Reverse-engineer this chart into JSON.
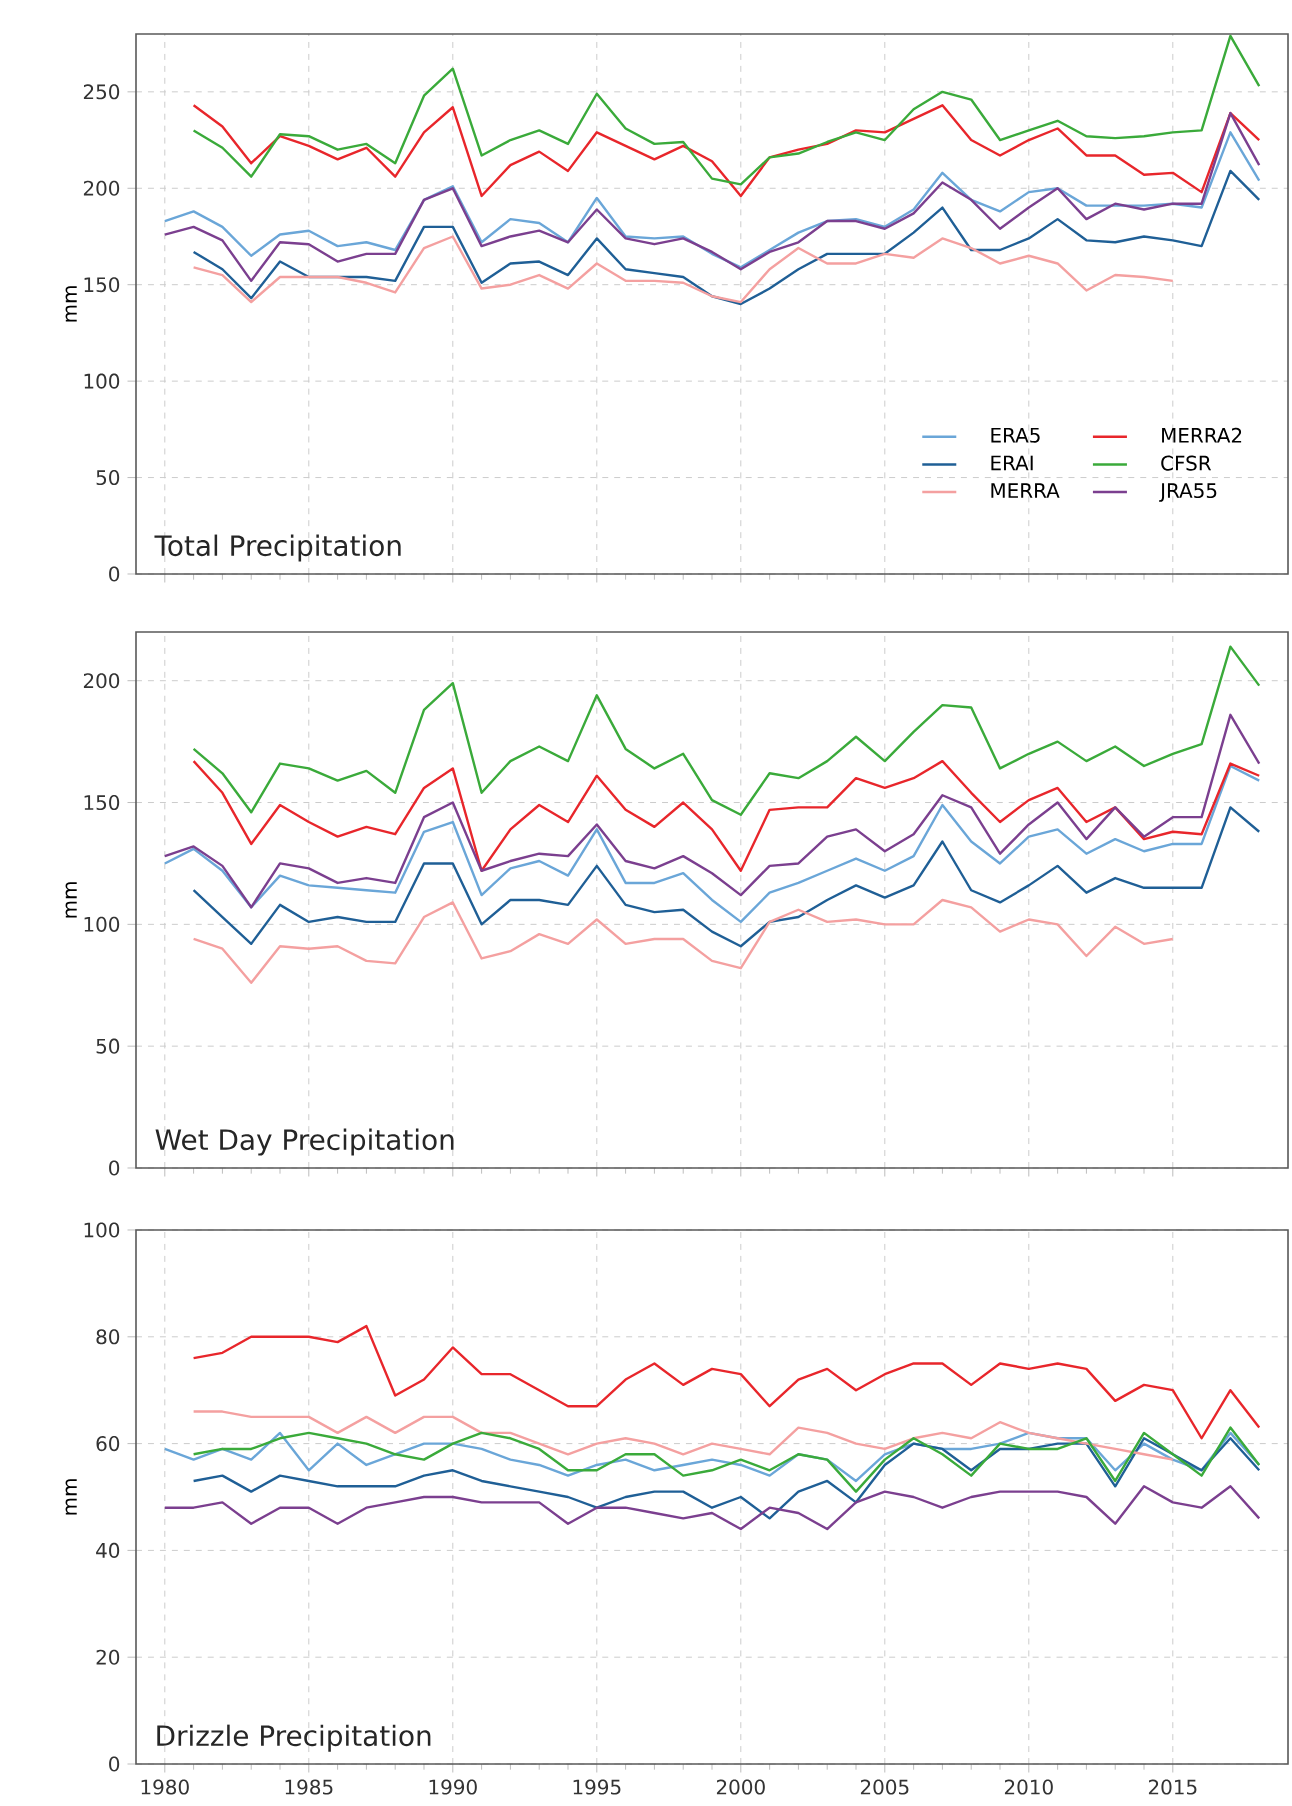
{
  "chart_data": [
    {
      "type": "line",
      "ylabel": "mm",
      "annotations": [
        "Total Precipitation"
      ],
      "x": [
        1980,
        1981,
        1982,
        1983,
        1984,
        1985,
        1986,
        1987,
        1988,
        1989,
        1990,
        1991,
        1992,
        1993,
        1994,
        1995,
        1996,
        1997,
        1998,
        1999,
        2000,
        2001,
        2002,
        2003,
        2004,
        2005,
        2006,
        2007,
        2008,
        2009,
        2010,
        2011,
        2012,
        2013,
        2014,
        2015,
        2016,
        2017,
        2018
      ],
      "xlim": [
        1979,
        2019
      ],
      "xticks": [
        1980,
        1985,
        1990,
        1995,
        2000,
        2005,
        2010,
        2015
      ],
      "ylim": [
        0,
        280
      ],
      "yticks": [
        0,
        50,
        100,
        150,
        200,
        250
      ],
      "grid": true,
      "legend": "bottom right",
      "tick_labels": "y",
      "line_style": "solid",
      "series": [
        {
          "name": "ERA5",
          "color": "#6aa6d8",
          "values": [
            183,
            188,
            180,
            165,
            176,
            178,
            170,
            172,
            168,
            194,
            201,
            172,
            184,
            182,
            172,
            195,
            175,
            174,
            175,
            166,
            159,
            168,
            177,
            183,
            184,
            180,
            189,
            208,
            194,
            188,
            198,
            200,
            191,
            191,
            191,
            192,
            190,
            229,
            204
          ]
        },
        {
          "name": "ERAI",
          "color": "#1f5f96",
          "values": [
            null,
            167,
            158,
            143,
            162,
            154,
            154,
            154,
            152,
            180,
            180,
            151,
            161,
            162,
            155,
            174,
            158,
            156,
            154,
            144,
            140,
            148,
            158,
            166,
            166,
            166,
            177,
            190,
            168,
            168,
            174,
            184,
            173,
            172,
            175,
            173,
            170,
            209,
            194
          ]
        },
        {
          "name": "MERRA",
          "color": "#f4a0a0",
          "values": [
            null,
            159,
            155,
            141,
            154,
            154,
            154,
            151,
            146,
            169,
            175,
            148,
            150,
            155,
            148,
            161,
            152,
            152,
            151,
            144,
            141,
            158,
            169,
            161,
            161,
            166,
            164,
            174,
            169,
            161,
            165,
            161,
            147,
            155,
            154,
            152,
            null,
            null,
            null
          ]
        },
        {
          "name": "MERRA2",
          "color": "#e8262b",
          "values": [
            null,
            243,
            232,
            213,
            227,
            222,
            215,
            221,
            206,
            229,
            242,
            196,
            212,
            219,
            209,
            229,
            222,
            215,
            222,
            214,
            196,
            216,
            220,
            223,
            230,
            229,
            236,
            243,
            225,
            217,
            225,
            231,
            217,
            217,
            207,
            208,
            198,
            239,
            225
          ]
        },
        {
          "name": "CFSR",
          "color": "#3aaa3a",
          "values": [
            null,
            230,
            221,
            206,
            228,
            227,
            220,
            223,
            213,
            248,
            262,
            217,
            225,
            230,
            223,
            249,
            231,
            223,
            224,
            205,
            202,
            216,
            218,
            224,
            229,
            225,
            241,
            250,
            246,
            225,
            230,
            235,
            227,
            226,
            227,
            229,
            230,
            279,
            253
          ]
        },
        {
          "name": "JRA55",
          "color": "#7b3f8f",
          "values": [
            176,
            180,
            173,
            152,
            172,
            171,
            162,
            166,
            166,
            194,
            200,
            170,
            175,
            178,
            172,
            189,
            174,
            171,
            174,
            167,
            158,
            167,
            172,
            183,
            183,
            179,
            187,
            203,
            194,
            179,
            190,
            200,
            184,
            192,
            189,
            192,
            192,
            239,
            212
          ]
        }
      ]
    },
    {
      "type": "line",
      "ylabel": "mm",
      "annotations": [
        "Wet Day Precipitation"
      ],
      "x": [
        1980,
        1981,
        1982,
        1983,
        1984,
        1985,
        1986,
        1987,
        1988,
        1989,
        1990,
        1991,
        1992,
        1993,
        1994,
        1995,
        1996,
        1997,
        1998,
        1999,
        2000,
        2001,
        2002,
        2003,
        2004,
        2005,
        2006,
        2007,
        2008,
        2009,
        2010,
        2011,
        2012,
        2013,
        2014,
        2015,
        2016,
        2017,
        2018
      ],
      "xlim": [
        1979,
        2019
      ],
      "xticks": [
        1980,
        1985,
        1990,
        1995,
        2000,
        2005,
        2010,
        2015
      ],
      "ylim": [
        0,
        220
      ],
      "yticks": [
        0,
        50,
        100,
        150,
        200
      ],
      "grid": true,
      "tick_labels": "y",
      "line_style": "solid",
      "series": [
        {
          "color": "#6aa6d8",
          "values": [
            125,
            131,
            122,
            107,
            120,
            116,
            115,
            114,
            113,
            138,
            142,
            112,
            123,
            126,
            120,
            139,
            117,
            117,
            121,
            110,
            101,
            113,
            117,
            122,
            127,
            122,
            128,
            149,
            134,
            125,
            136,
            139,
            129,
            135,
            130,
            133,
            133,
            165,
            159
          ]
        },
        {
          "color": "#1f5f96",
          "values": [
            null,
            114,
            103,
            92,
            108,
            101,
            103,
            101,
            101,
            125,
            125,
            100,
            110,
            110,
            108,
            124,
            108,
            105,
            106,
            97,
            91,
            101,
            103,
            110,
            116,
            111,
            116,
            134,
            114,
            109,
            116,
            124,
            113,
            119,
            115,
            115,
            115,
            148,
            138
          ]
        },
        {
          "color": "#f4a0a0",
          "values": [
            null,
            94,
            90,
            76,
            91,
            90,
            91,
            85,
            84,
            103,
            109,
            86,
            89,
            96,
            92,
            102,
            92,
            94,
            94,
            85,
            82,
            101,
            106,
            101,
            102,
            100,
            100,
            110,
            107,
            97,
            102,
            100,
            87,
            99,
            92,
            94,
            null,
            null,
            null
          ]
        },
        {
          "color": "#e8262b",
          "values": [
            null,
            167,
            154,
            133,
            149,
            142,
            136,
            140,
            137,
            156,
            164,
            122,
            139,
            149,
            142,
            161,
            147,
            140,
            150,
            139,
            122,
            147,
            148,
            148,
            160,
            156,
            160,
            167,
            154,
            142,
            151,
            156,
            142,
            148,
            135,
            138,
            137,
            166,
            161
          ]
        },
        {
          "color": "#3aaa3a",
          "values": [
            null,
            172,
            162,
            146,
            166,
            164,
            159,
            163,
            154,
            188,
            199,
            154,
            167,
            173,
            167,
            194,
            172,
            164,
            170,
            151,
            145,
            162,
            160,
            167,
            177,
            167,
            179,
            190,
            189,
            164,
            170,
            175,
            167,
            173,
            165,
            170,
            174,
            214,
            198
          ]
        },
        {
          "color": "#7b3f8f",
          "values": [
            128,
            132,
            124,
            107,
            125,
            123,
            117,
            119,
            117,
            144,
            150,
            122,
            126,
            129,
            128,
            141,
            126,
            123,
            128,
            121,
            112,
            124,
            125,
            136,
            139,
            130,
            137,
            153,
            148,
            129,
            141,
            150,
            135,
            148,
            136,
            144,
            144,
            186,
            166
          ]
        }
      ]
    },
    {
      "type": "line",
      "ylabel": "mm",
      "annotations": [
        "Drizzle Precipitation"
      ],
      "x": [
        1980,
        1981,
        1982,
        1983,
        1984,
        1985,
        1986,
        1987,
        1988,
        1989,
        1990,
        1991,
        1992,
        1993,
        1994,
        1995,
        1996,
        1997,
        1998,
        1999,
        2000,
        2001,
        2002,
        2003,
        2004,
        2005,
        2006,
        2007,
        2008,
        2009,
        2010,
        2011,
        2012,
        2013,
        2014,
        2015,
        2016,
        2017,
        2018
      ],
      "xlim": [
        1979,
        2019
      ],
      "xticks": [
        1980,
        1985,
        1990,
        1995,
        2000,
        2005,
        2010,
        2015
      ],
      "ylim": [
        0,
        100
      ],
      "yticks": [
        0,
        20,
        40,
        60,
        80,
        100
      ],
      "grid": true,
      "line_style": "solid",
      "series": [
        {
          "color": "#6aa6d8",
          "values": [
            59,
            57,
            59,
            57,
            62,
            55,
            60,
            56,
            58,
            60,
            60,
            59,
            57,
            56,
            54,
            56,
            57,
            55,
            56,
            57,
            56,
            54,
            58,
            57,
            53,
            58,
            60,
            59,
            59,
            60,
            62,
            61,
            61,
            55,
            60,
            57,
            55,
            62,
            56
          ]
        },
        {
          "color": "#1f5f96",
          "values": [
            null,
            53,
            54,
            51,
            54,
            53,
            52,
            52,
            52,
            54,
            55,
            53,
            52,
            51,
            50,
            48,
            50,
            51,
            51,
            48,
            50,
            46,
            51,
            53,
            49,
            56,
            60,
            59,
            55,
            59,
            59,
            60,
            60,
            52,
            61,
            58,
            55,
            61,
            55
          ]
        },
        {
          "color": "#f4a0a0",
          "values": [
            null,
            66,
            66,
            65,
            65,
            65,
            62,
            65,
            62,
            65,
            65,
            62,
            62,
            60,
            58,
            60,
            61,
            60,
            58,
            60,
            59,
            58,
            63,
            62,
            60,
            59,
            61,
            62,
            61,
            64,
            62,
            61,
            60,
            59,
            58,
            57,
            null,
            null,
            null
          ]
        },
        {
          "color": "#e8262b",
          "values": [
            null,
            76,
            77,
            80,
            80,
            80,
            79,
            82,
            69,
            72,
            78,
            73,
            73,
            70,
            67,
            67,
            72,
            75,
            71,
            74,
            73,
            67,
            72,
            74,
            70,
            73,
            75,
            75,
            71,
            75,
            74,
            75,
            74,
            68,
            71,
            70,
            61,
            70,
            63
          ]
        },
        {
          "color": "#3aaa3a",
          "values": [
            null,
            58,
            59,
            59,
            61,
            62,
            61,
            60,
            58,
            57,
            60,
            62,
            61,
            59,
            55,
            55,
            58,
            58,
            54,
            55,
            57,
            55,
            58,
            57,
            51,
            57,
            61,
            58,
            54,
            60,
            59,
            59,
            61,
            53,
            62,
            58,
            54,
            63,
            56
          ]
        },
        {
          "color": "#7b3f8f",
          "values": [
            48,
            48,
            49,
            45,
            48,
            48,
            45,
            48,
            49,
            50,
            50,
            49,
            49,
            49,
            45,
            48,
            48,
            47,
            46,
            47,
            44,
            48,
            47,
            44,
            49,
            51,
            50,
            48,
            50,
            51,
            51,
            51,
            50,
            45,
            52,
            49,
            48,
            52,
            46
          ]
        }
      ]
    }
  ]
}
